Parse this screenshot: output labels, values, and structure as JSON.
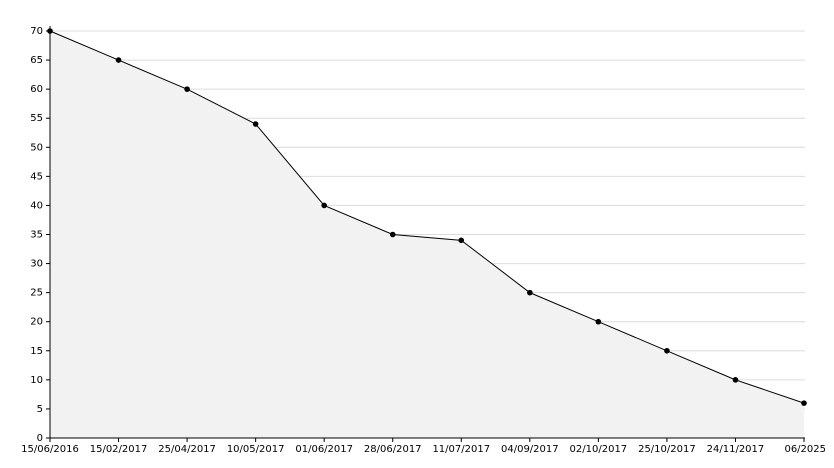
{
  "chart_data": {
    "type": "area",
    "categories": [
      "15/06/2016",
      "15/02/2017",
      "25/04/2017",
      "10/05/2017",
      "01/06/2017",
      "28/06/2017",
      "11/07/2017",
      "04/09/2017",
      "02/10/2017",
      "25/10/2017",
      "24/11/2017",
      "06/2025"
    ],
    "values": [
      70,
      65,
      60,
      54,
      40,
      35,
      34,
      25,
      20,
      15,
      10,
      6
    ],
    "color": "#000000",
    "fill": "#f2f2f2",
    "ylim": [
      0,
      70
    ],
    "yticks": [
      0,
      5,
      10,
      15,
      20,
      25,
      30,
      35,
      40,
      45,
      50,
      55,
      60,
      65,
      70
    ],
    "grid": true
  }
}
